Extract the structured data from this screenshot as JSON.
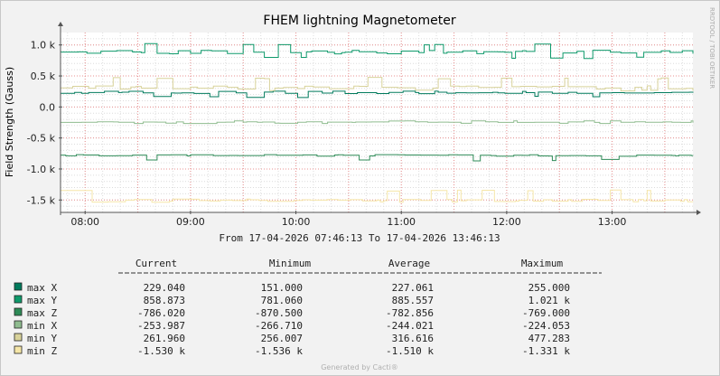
{
  "chart_data": {
    "type": "line",
    "title": "FHEM lightning Magnetometer",
    "ylabel": "Field Strength (Gauss)",
    "watermark": "RRDTOOL / TOBI OETIKER",
    "footer": "Generated by Cacti®",
    "date_range_text": "From 17-04-2026 07:46:13 To 17-04-2026 13:46:13",
    "x_start": "07:46",
    "x_end": "13:46",
    "x_ticks": [
      "08:00",
      "09:00",
      "10:00",
      "11:00",
      "12:00",
      "13:00"
    ],
    "y_ticks": [
      {
        "value": 1000,
        "label": "1.0 k"
      },
      {
        "value": 500,
        "label": "0.5 k"
      },
      {
        "value": 0,
        "label": "0.0"
      },
      {
        "value": -500,
        "label": "-0.5 k"
      },
      {
        "value": -1000,
        "label": "-1.0 k"
      },
      {
        "value": -1500,
        "label": "-1.5 k"
      }
    ],
    "ylim": [
      -1700,
      1200
    ],
    "grid": true,
    "series": [
      {
        "name": "max X",
        "color": "#007a5c",
        "current": 229.04,
        "minimum": 151.0,
        "average": 227.061,
        "maximum": 255.0
      },
      {
        "name": "max Y",
        "color": "#0e9a6b",
        "current": 858.873,
        "minimum": 781.06,
        "average": 885.557,
        "maximum": 1021
      },
      {
        "name": "max Z",
        "color": "#2e8b57",
        "current": -786.02,
        "minimum": -870.5,
        "average": -782.856,
        "maximum": -769.0
      },
      {
        "name": "min X",
        "color": "#8fbc8f",
        "current": -253.987,
        "minimum": -266.71,
        "average": -244.021,
        "maximum": -224.053
      },
      {
        "name": "min Y",
        "color": "#d8d29a",
        "current": 261.96,
        "minimum": 256.007,
        "average": 316.616,
        "maximum": 477.283
      },
      {
        "name": "min Z",
        "color": "#f5e6a8",
        "current": -1530,
        "minimum": -1536,
        "average": -1510,
        "maximum": -1331
      }
    ]
  },
  "legend": {
    "headers": [
      "Current",
      "Minimum",
      "Average",
      "Maximum"
    ],
    "rows": [
      {
        "name": "max X",
        "current": "229.040",
        "minimum": "151.000",
        "average": "227.061",
        "maximum": "255.000"
      },
      {
        "name": "max Y",
        "current": "858.873",
        "minimum": "781.060",
        "average": "885.557",
        "maximum": "1.021  k"
      },
      {
        "name": "max Z",
        "current": "-786.020",
        "minimum": "-870.500",
        "average": "-782.856",
        "maximum": "-769.000"
      },
      {
        "name": "min X",
        "current": "-253.987",
        "minimum": "-266.710",
        "average": "-244.021",
        "maximum": "-224.053"
      },
      {
        "name": "min Y",
        "current": "261.960",
        "minimum": "256.007",
        "average": "316.616",
        "maximum": "477.283"
      },
      {
        "name": "min Z",
        "current": "-1.530  k",
        "minimum": "-1.536  k",
        "average": "-1.510  k",
        "maximum": "-1.331  k"
      }
    ]
  }
}
